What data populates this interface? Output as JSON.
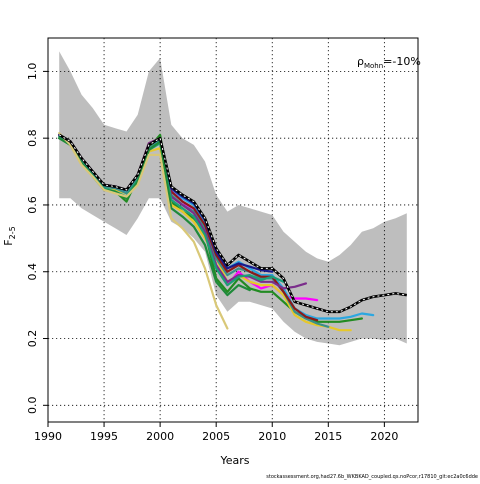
{
  "chart_data": {
    "type": "line",
    "xlabel": "Years",
    "ylabel": "F",
    "ylabel_sub": "2-5",
    "annotation": {
      "prefix": "ρ",
      "sub": "Mohn",
      "value": "=-10%"
    },
    "footer": "stockassessment.org,had27.6b_WKBKAD_coupled.qs.noPcor,r17810_git:ec2a0c6dde",
    "xlim": [
      1990,
      2023
    ],
    "ylim": [
      -0.05,
      1.1
    ],
    "xticks": [
      1990,
      1995,
      2000,
      2005,
      2010,
      2015,
      2020
    ],
    "yticks": [
      0.0,
      0.2,
      0.4,
      0.6,
      0.8,
      1.0
    ],
    "ytick_labels": [
      "0.0",
      "0.2",
      "0.4",
      "0.6",
      "0.8",
      "1.0"
    ],
    "grid": true,
    "band": {
      "color": "#bebebe",
      "x": [
        1991,
        1992,
        1993,
        1994,
        1995,
        1996,
        1997,
        1998,
        1999,
        2000,
        2001,
        2002,
        2003,
        2004,
        2005,
        2006,
        2007,
        2008,
        2009,
        2010,
        2011,
        2012,
        2013,
        2014,
        2015,
        2016,
        2017,
        2018,
        2019,
        2020,
        2021,
        2022
      ],
      "upper": [
        1.06,
        1.0,
        0.93,
        0.89,
        0.84,
        0.83,
        0.82,
        0.87,
        1.0,
        1.04,
        0.84,
        0.8,
        0.78,
        0.73,
        0.63,
        0.58,
        0.6,
        0.59,
        0.58,
        0.57,
        0.52,
        0.49,
        0.46,
        0.44,
        0.43,
        0.45,
        0.48,
        0.52,
        0.53,
        0.55,
        0.56,
        0.575
      ],
      "lower": [
        0.62,
        0.62,
        0.59,
        0.57,
        0.55,
        0.53,
        0.51,
        0.56,
        0.62,
        0.62,
        0.55,
        0.53,
        0.5,
        0.46,
        0.33,
        0.28,
        0.31,
        0.31,
        0.3,
        0.29,
        0.25,
        0.22,
        0.2,
        0.19,
        0.185,
        0.18,
        0.19,
        0.2,
        0.2,
        0.195,
        0.2,
        0.185
      ]
    },
    "main": {
      "color": "#000000",
      "x": [
        1991,
        1992,
        1993,
        1994,
        1995,
        1996,
        1997,
        1998,
        1999,
        2000,
        2001,
        2002,
        2003,
        2004,
        2005,
        2006,
        2007,
        2008,
        2009,
        2010,
        2011,
        2012,
        2013,
        2014,
        2015,
        2016,
        2017,
        2018,
        2019,
        2020,
        2021,
        2022
      ],
      "y": [
        0.81,
        0.79,
        0.74,
        0.7,
        0.66,
        0.655,
        0.645,
        0.69,
        0.78,
        0.8,
        0.655,
        0.63,
        0.61,
        0.56,
        0.47,
        0.42,
        0.45,
        0.43,
        0.41,
        0.41,
        0.38,
        0.31,
        0.3,
        0.29,
        0.28,
        0.28,
        0.295,
        0.315,
        0.325,
        0.33,
        0.335,
        0.33
      ]
    },
    "series": [
      {
        "color": "#ff00ff",
        "x": [
          1991,
          1992,
          1993,
          1994,
          1995,
          1996,
          1997,
          1998,
          1999,
          2000,
          2001,
          2002,
          2003,
          2004,
          2005,
          2006,
          2007,
          2008,
          2009,
          2010,
          2011,
          2012,
          2013,
          2014
        ],
        "y": [
          0.81,
          0.79,
          0.74,
          0.7,
          0.66,
          0.655,
          0.645,
          0.69,
          0.78,
          0.8,
          0.645,
          0.61,
          0.58,
          0.52,
          0.42,
          0.36,
          0.4,
          0.37,
          0.35,
          0.36,
          0.33,
          0.32,
          0.32,
          0.315
        ]
      },
      {
        "color": "#2ca7e0",
        "x": [
          1991,
          1992,
          1993,
          1994,
          1995,
          1996,
          1997,
          1998,
          1999,
          2000,
          2001,
          2002,
          2003,
          2004,
          2005,
          2006,
          2007,
          2008,
          2009,
          2010,
          2011,
          2012,
          2013,
          2014,
          2015,
          2016,
          2017,
          2018,
          2019
        ],
        "y": [
          0.81,
          0.785,
          0.735,
          0.695,
          0.655,
          0.65,
          0.64,
          0.685,
          0.775,
          0.795,
          0.65,
          0.62,
          0.6,
          0.55,
          0.46,
          0.41,
          0.43,
          0.41,
          0.39,
          0.39,
          0.35,
          0.29,
          0.27,
          0.26,
          0.26,
          0.26,
          0.265,
          0.275,
          0.27
        ]
      },
      {
        "color": "#228b22",
        "x": [
          1991,
          1992,
          1993,
          1994,
          1995,
          1996,
          1997,
          1998,
          1999,
          2000,
          2001,
          2002,
          2003,
          2004,
          2005,
          2006,
          2007,
          2008,
          2009,
          2010,
          2011,
          2012,
          2013,
          2014,
          2015,
          2016,
          2017,
          2018
        ],
        "y": [
          0.8,
          0.78,
          0.73,
          0.69,
          0.65,
          0.64,
          0.61,
          0.68,
          0.77,
          0.81,
          0.61,
          0.58,
          0.56,
          0.52,
          0.38,
          0.34,
          0.38,
          0.35,
          0.34,
          0.34,
          0.31,
          0.28,
          0.26,
          0.25,
          0.25,
          0.25,
          0.255,
          0.26
        ]
      },
      {
        "color": "#e6c82a",
        "x": [
          1991,
          1992,
          1993,
          1994,
          1995,
          1996,
          1997,
          1998,
          1999,
          2000,
          2001,
          2002,
          2003,
          2004,
          2005,
          2006,
          2007,
          2008,
          2009,
          2010,
          2011,
          2012,
          2013,
          2014,
          2015,
          2016,
          2017
        ],
        "y": [
          0.81,
          0.78,
          0.72,
          0.69,
          0.65,
          0.645,
          0.635,
          0.67,
          0.76,
          0.77,
          0.6,
          0.58,
          0.55,
          0.5,
          0.44,
          0.37,
          0.39,
          0.37,
          0.36,
          0.36,
          0.33,
          0.27,
          0.25,
          0.24,
          0.235,
          0.225,
          0.225
        ]
      },
      {
        "color": "#3a8f8a",
        "x": [
          1991,
          1992,
          1993,
          1994,
          1995,
          1996,
          1997,
          1998,
          1999,
          2000,
          2001,
          2002,
          2003,
          2004,
          2005,
          2006,
          2007,
          2008,
          2009,
          2010,
          2011,
          2012,
          2013,
          2014,
          2015
        ],
        "y": [
          0.81,
          0.785,
          0.735,
          0.695,
          0.655,
          0.65,
          0.635,
          0.68,
          0.77,
          0.79,
          0.63,
          0.6,
          0.58,
          0.53,
          0.44,
          0.39,
          0.41,
          0.4,
          0.38,
          0.38,
          0.34,
          0.28,
          0.26,
          0.245,
          0.235
        ]
      },
      {
        "color": "#8b1a1a",
        "x": [
          1991,
          1992,
          1993,
          1994,
          1995,
          1996,
          1997,
          1998,
          1999,
          2000,
          2001,
          2002,
          2003,
          2004,
          2005,
          2006,
          2007,
          2008,
          2009,
          2010,
          2011,
          2012,
          2013,
          2014
        ],
        "y": [
          0.81,
          0.79,
          0.74,
          0.7,
          0.66,
          0.655,
          0.645,
          0.69,
          0.785,
          0.8,
          0.64,
          0.61,
          0.59,
          0.54,
          0.45,
          0.4,
          0.42,
          0.4,
          0.385,
          0.385,
          0.34,
          0.29,
          0.265,
          0.255
        ]
      },
      {
        "color": "#7b2d8b",
        "x": [
          1991,
          1992,
          1993,
          1994,
          1995,
          1996,
          1997,
          1998,
          1999,
          2000,
          2001,
          2002,
          2003,
          2004,
          2005,
          2006,
          2007,
          2008,
          2009,
          2010,
          2011,
          2012,
          2013
        ],
        "y": [
          0.81,
          0.79,
          0.74,
          0.7,
          0.66,
          0.655,
          0.645,
          0.69,
          0.785,
          0.8,
          0.625,
          0.6,
          0.575,
          0.52,
          0.42,
          0.37,
          0.39,
          0.385,
          0.37,
          0.37,
          0.35,
          0.355,
          0.365
        ]
      },
      {
        "color": "#1c9e78",
        "x": [
          1991,
          1992,
          1993,
          1994,
          1995,
          1996,
          1997,
          1998,
          1999,
          2000,
          2001,
          2002,
          2003,
          2004,
          2005,
          2006,
          2007,
          2008,
          2009,
          2010,
          2011
        ],
        "y": [
          0.805,
          0.78,
          0.73,
          0.69,
          0.65,
          0.64,
          0.625,
          0.675,
          0.765,
          0.785,
          0.615,
          0.59,
          0.565,
          0.51,
          0.41,
          0.36,
          0.385,
          0.39,
          0.375,
          0.385,
          0.37
        ]
      },
      {
        "color": "#1a1a8b",
        "x": [
          1991,
          1992,
          1993,
          1994,
          1995,
          1996,
          1997,
          1998,
          1999,
          2000,
          2001,
          2002,
          2003,
          2004,
          2005,
          2006,
          2007,
          2008,
          2009,
          2010
        ],
        "y": [
          0.81,
          0.79,
          0.74,
          0.7,
          0.66,
          0.655,
          0.645,
          0.69,
          0.78,
          0.8,
          0.65,
          0.625,
          0.605,
          0.555,
          0.46,
          0.41,
          0.425,
          0.415,
          0.405,
          0.4
        ]
      },
      {
        "color": "#1f8a3a",
        "x": [
          1991,
          1992,
          1993,
          1994,
          1995,
          1996,
          1997,
          1998,
          1999,
          2000,
          2001,
          2002,
          2003,
          2004,
          2005,
          2006,
          2007,
          2008
        ],
        "y": [
          0.8,
          0.78,
          0.725,
          0.685,
          0.645,
          0.64,
          0.62,
          0.67,
          0.765,
          0.79,
          0.59,
          0.565,
          0.535,
          0.48,
          0.37,
          0.33,
          0.36,
          0.345
        ]
      },
      {
        "color": "#d9c878",
        "x": [
          1991,
          1992,
          1993,
          1994,
          1995,
          1996,
          1997,
          1998,
          1999,
          2000,
          2001,
          2002,
          2003,
          2004,
          2005,
          2006
        ],
        "y": [
          0.815,
          0.78,
          0.72,
          0.685,
          0.645,
          0.635,
          0.625,
          0.66,
          0.75,
          0.75,
          0.56,
          0.53,
          0.49,
          0.41,
          0.3,
          0.23
        ]
      }
    ]
  }
}
